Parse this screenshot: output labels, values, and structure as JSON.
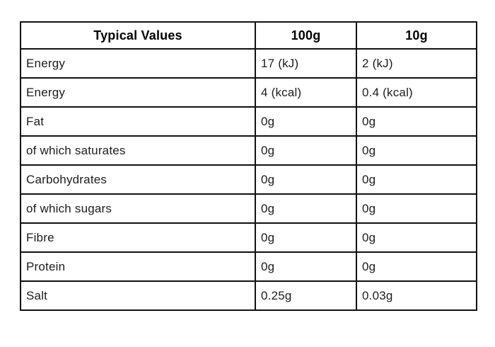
{
  "table": {
    "headers": {
      "label": "Typical Values",
      "col100": "100g",
      "col10": "10g"
    },
    "rows": [
      {
        "label": "Energy",
        "per100": "17 (kJ)",
        "per10": "2 (kJ)"
      },
      {
        "label": "Energy",
        "per100": "4 (kcal)",
        "per10": "0.4 (kcal)"
      },
      {
        "label": "Fat",
        "per100": "0g",
        "per10": "0g"
      },
      {
        "label": "of which saturates",
        "per100": "0g",
        "per10": "0g"
      },
      {
        "label": "Carbohydrates",
        "per100": "0g",
        "per10": "0g"
      },
      {
        "label": "of which sugars",
        "per100": "0g",
        "per10": "0g"
      },
      {
        "label": "Fibre",
        "per100": "0g",
        "per10": "0g"
      },
      {
        "label": "Protein",
        "per100": "0g",
        "per10": "0g"
      },
      {
        "label": "Salt",
        "per100": "0.25g",
        "per10": "0.03g"
      }
    ],
    "colors": {
      "background": "#ffffff",
      "border": "#111111",
      "header_text": "#000000",
      "body_text": "#1c1c1c"
    }
  }
}
